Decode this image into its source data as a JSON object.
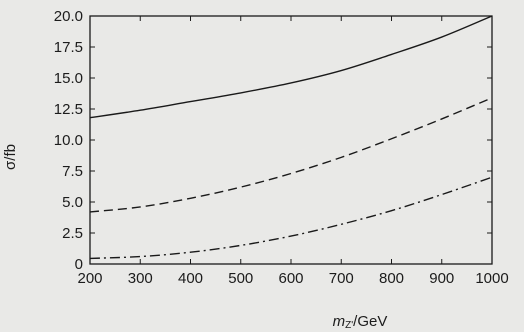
{
  "chart_data": {
    "type": "line",
    "title": "",
    "xlabel": "m",
    "xlabel_sub": "Z'",
    "xlabel_unit": "/GeV",
    "ylabel": "σ/fb",
    "xlim": [
      200,
      1000
    ],
    "ylim": [
      0,
      20
    ],
    "x_ticks": [
      "200",
      "300",
      "400",
      "500",
      "600",
      "700",
      "800",
      "900",
      "1000"
    ],
    "y_ticks": [
      "0",
      "2.5",
      "5.0",
      "7.5",
      "10.0",
      "12.5",
      "15.0",
      "17.5",
      "20.0"
    ],
    "x_tick_values": [
      200,
      300,
      400,
      500,
      600,
      700,
      800,
      900,
      1000
    ],
    "y_tick_values": [
      0,
      2.5,
      5.0,
      7.5,
      10.0,
      12.5,
      15.0,
      17.5,
      20.0
    ],
    "grid": false,
    "legend": "none",
    "x": [
      200,
      300,
      400,
      500,
      600,
      700,
      800,
      900,
      1000
    ],
    "series": [
      {
        "style": "solid",
        "values": [
          11.8,
          12.4,
          13.1,
          13.8,
          14.6,
          15.6,
          16.9,
          18.3,
          20.0
        ]
      },
      {
        "style": "dashed",
        "values": [
          4.2,
          4.6,
          5.3,
          6.2,
          7.3,
          8.6,
          10.1,
          11.7,
          13.4
        ]
      },
      {
        "style": "dashdot",
        "values": [
          0.45,
          0.6,
          0.95,
          1.5,
          2.25,
          3.2,
          4.3,
          5.6,
          7.0
        ]
      }
    ]
  },
  "colors": {
    "line": "#1a1a1a",
    "background": "#e9e9e7"
  }
}
